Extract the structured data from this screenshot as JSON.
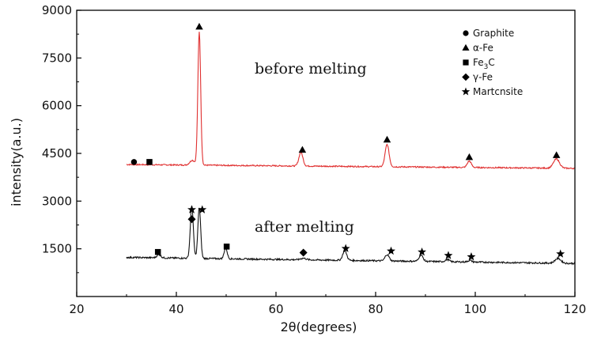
{
  "chart_data": {
    "type": "line",
    "xlabel": "2θ(degrees)",
    "ylabel": "intensity(a.u.)",
    "xlim": [
      20,
      120
    ],
    "ylim": [
      0,
      9000
    ],
    "xticks": [
      20,
      40,
      60,
      80,
      100,
      120
    ],
    "yticks": [
      1500,
      3000,
      4500,
      6000,
      7500,
      9000
    ],
    "grid": false,
    "legend_position": "top-right",
    "legend": [
      {
        "marker": "circle",
        "label": "Graphite"
      },
      {
        "marker": "triangle",
        "label": "α-Fe"
      },
      {
        "marker": "square",
        "label_main": "Fe",
        "label_sub": "3",
        "label_tail": "C"
      },
      {
        "marker": "diamond",
        "label": "γ-Fe"
      },
      {
        "marker": "star",
        "label": "Martcnsite"
      }
    ],
    "annotations": [
      "before melting",
      "after melting"
    ],
    "series": [
      {
        "color": "#e03030",
        "baseline": 4150,
        "baseline_end": 4030,
        "noise": 20,
        "peaks": [
          {
            "x": 43.2,
            "h": 150,
            "w": 0.5
          },
          {
            "x": 44.6,
            "h": 4200,
            "w": 0.28
          },
          {
            "x": 65.0,
            "h": 430,
            "w": 0.4
          },
          {
            "x": 82.3,
            "h": 700,
            "w": 0.4
          },
          {
            "x": 98.8,
            "h": 200,
            "w": 0.4
          },
          {
            "x": 116.3,
            "h": 290,
            "w": 0.6
          }
        ],
        "markers": [
          {
            "x": 31.5,
            "y": 4230,
            "shape": "circle"
          },
          {
            "x": 34.6,
            "y": 4230,
            "shape": "square"
          },
          {
            "x": 44.6,
            "y": 8480,
            "shape": "triangle"
          },
          {
            "x": 65.3,
            "y": 4610,
            "shape": "triangle"
          },
          {
            "x": 82.3,
            "y": 4930,
            "shape": "triangle"
          },
          {
            "x": 98.8,
            "y": 4380,
            "shape": "triangle"
          },
          {
            "x": 116.3,
            "y": 4440,
            "shape": "triangle"
          }
        ]
      },
      {
        "color": "#111111",
        "baseline": 1230,
        "baseline_end": 1040,
        "noise": 25,
        "peaks": [
          {
            "x": 36.5,
            "h": 100,
            "w": 0.4
          },
          {
            "x": 43.1,
            "h": 1650,
            "w": 0.3
          },
          {
            "x": 44.6,
            "h": 1600,
            "w": 0.28
          },
          {
            "x": 49.9,
            "h": 350,
            "w": 0.3
          },
          {
            "x": 65.5,
            "h": 50,
            "w": 0.5
          },
          {
            "x": 73.8,
            "h": 300,
            "w": 0.4
          },
          {
            "x": 82.3,
            "h": 200,
            "w": 0.4
          },
          {
            "x": 89.1,
            "h": 200,
            "w": 0.4
          },
          {
            "x": 94.4,
            "h": 70,
            "w": 0.4
          },
          {
            "x": 98.9,
            "h": 50,
            "w": 0.4
          },
          {
            "x": 116.6,
            "h": 150,
            "w": 0.6
          }
        ],
        "markers": [
          {
            "x": 36.3,
            "y": 1400,
            "shape": "square"
          },
          {
            "x": 43.1,
            "y": 2430,
            "shape": "diamond"
          },
          {
            "x": 43.1,
            "y": 2730,
            "shape": "star"
          },
          {
            "x": 45.2,
            "y": 2730,
            "shape": "star"
          },
          {
            "x": 50.1,
            "y": 1570,
            "shape": "square"
          },
          {
            "x": 65.5,
            "y": 1380,
            "shape": "diamond"
          },
          {
            "x": 74.0,
            "y": 1510,
            "shape": "star"
          },
          {
            "x": 83.1,
            "y": 1430,
            "shape": "star"
          },
          {
            "x": 89.3,
            "y": 1400,
            "shape": "star"
          },
          {
            "x": 94.6,
            "y": 1290,
            "shape": "star"
          },
          {
            "x": 99.2,
            "y": 1250,
            "shape": "star"
          },
          {
            "x": 117.1,
            "y": 1340,
            "shape": "star"
          }
        ]
      }
    ]
  }
}
